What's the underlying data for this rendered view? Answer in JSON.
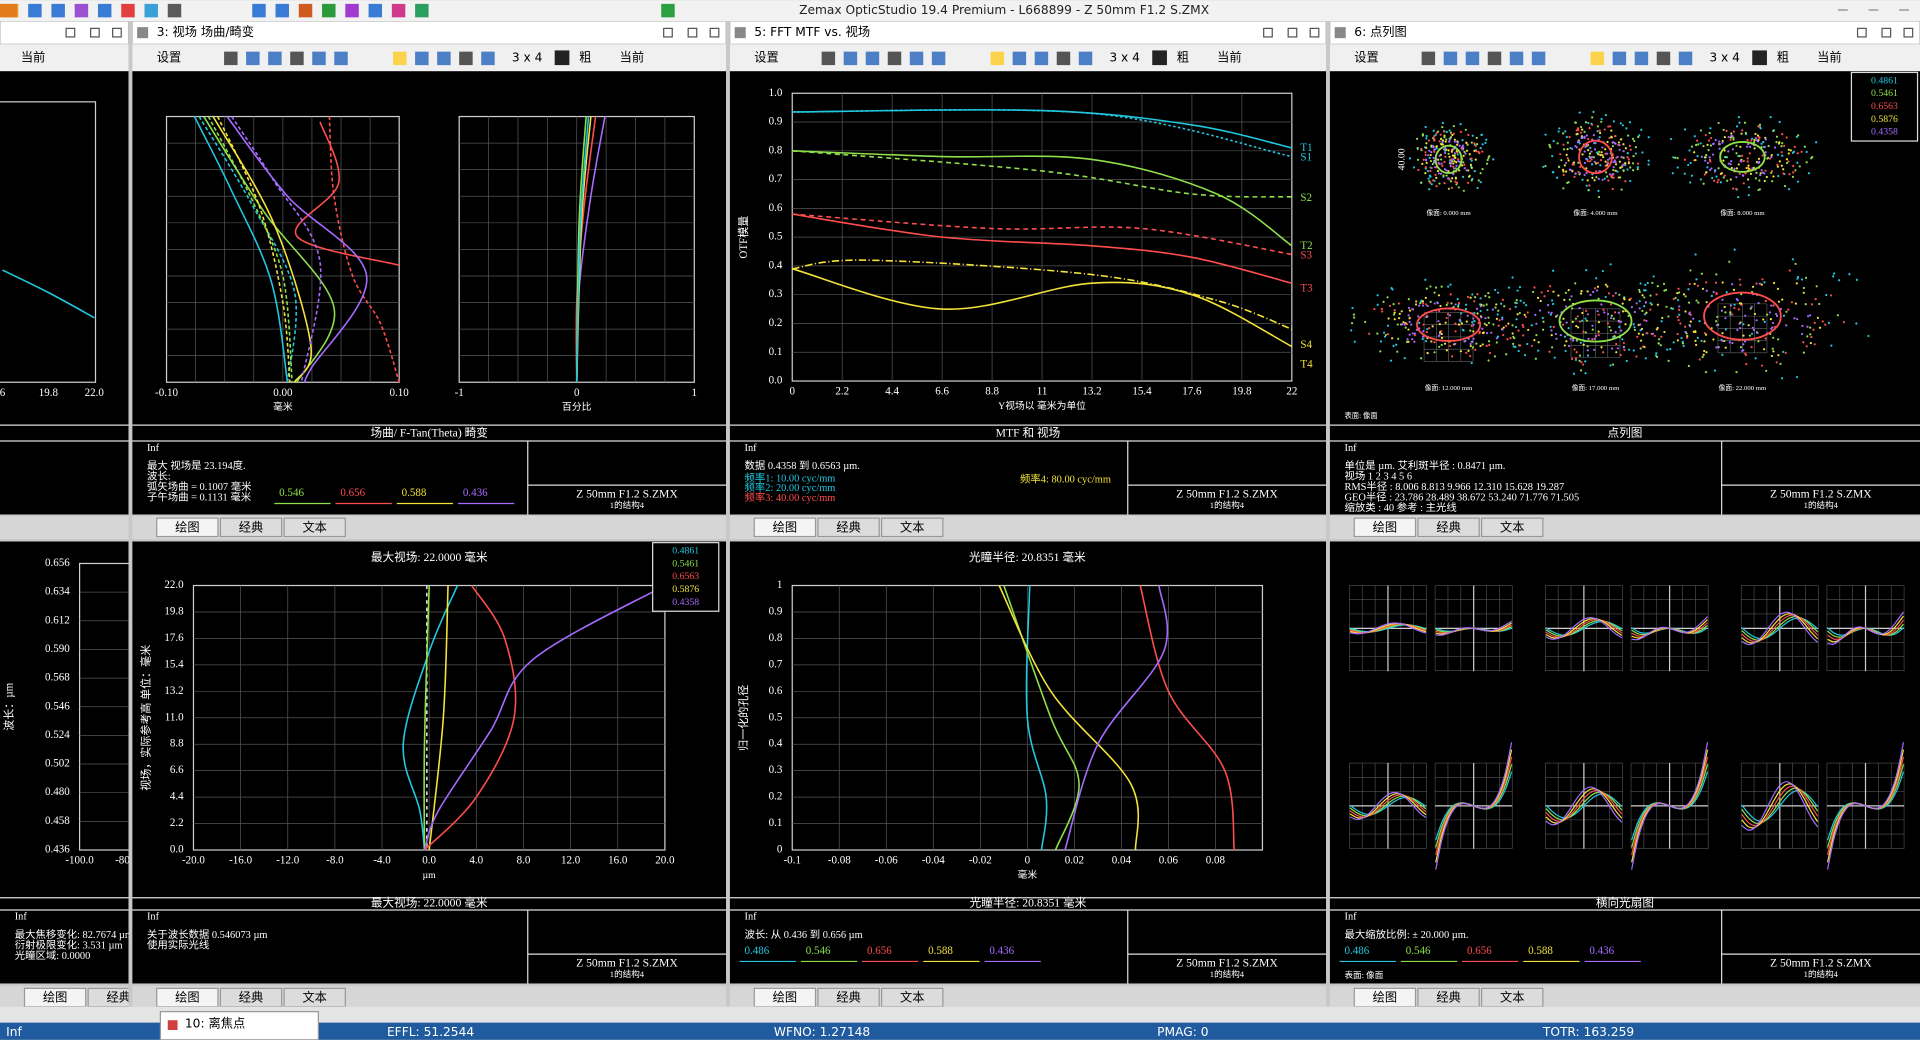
{
  "window_title": "Zemax OpticStudio 19.4    Premium - L668899 - Z 50mm F1.2 S.ZMX",
  "status_bar": [
    "Inf",
    "EFFL: 51.2544",
    "WFNO: 1.27148",
    "PMAG: 0",
    "TOTR: 163.259"
  ],
  "floating_tab": "10: 离焦点",
  "panels": [
    {
      "toolbar": [
        "当前"
      ],
      "axes": [
        {
          "xticks": [
            "6",
            "19.8",
            "22.0"
          ]
        }
      ]
    },
    {
      "header": "3: 视场 场曲/畸变",
      "toolbar": [
        "设置",
        "3 x 4",
        "粗",
        "当前"
      ],
      "axes": [
        {
          "xticks": [
            "-0.10",
            "0.00",
            "0.10"
          ],
          "xlabel": "毫米"
        },
        {
          "xticks": [
            "-1",
            "0",
            "1"
          ],
          "xlabel": "百分比"
        }
      ],
      "caption": "场曲/ F-Tan(Theta) 畸变",
      "info": [
        "Inf",
        "最大 视场是 23.194度.",
        "波长:",
        "弧矢场曲 = 0.1007 毫米",
        "子午场曲 = 0.1131 毫米"
      ],
      "wavelengths": [
        {
          "label": "0.546",
          "color": "#8ee04a"
        },
        {
          "label": "0.656",
          "color": "#ff4d4d"
        },
        {
          "label": "0.588",
          "color": "#f2e23a"
        },
        {
          "label": "0.436",
          "color": "#a66bff"
        }
      ],
      "file": "Z 50mm F1.2 S.ZMX",
      "config": "1的结构4",
      "tabs": [
        "绘图",
        "经典",
        "文本"
      ]
    },
    {
      "header": "5: FFT MTF vs. 视场",
      "toolbar": [
        "设置",
        "3 x 4",
        "粗",
        "当前"
      ],
      "axes": [
        {
          "xticks": [
            "0",
            "2.2",
            "4.4",
            "6.6",
            "8.8",
            "11",
            "13.2",
            "15.4",
            "17.6",
            "19.8",
            "22"
          ],
          "yticks": [
            "0.0",
            "0.1",
            "0.2",
            "0.3",
            "0.4",
            "0.5",
            "0.6",
            "0.7",
            "0.8",
            "0.9",
            "1.0"
          ],
          "xlabel": "Y视场以 毫米为单位",
          "ylabel": "OTF模量"
        }
      ],
      "curve_labels": [
        {
          "label": "T1",
          "color": "#20c8e0"
        },
        {
          "label": "S1",
          "color": "#20c8e0"
        },
        {
          "label": "S2",
          "color": "#8ee04a"
        },
        {
          "label": "T2",
          "color": "#8ee04a"
        },
        {
          "label": "S3",
          "color": "#ff4d4d"
        },
        {
          "label": "T3",
          "color": "#ff4d4d"
        },
        {
          "label": "S4",
          "color": "#f2e23a"
        },
        {
          "label": "T4",
          "color": "#f2e23a"
        }
      ],
      "caption": "MTF 和 视场",
      "info": [
        "Inf",
        "数据 0.4358 到 0.6563 µm."
      ],
      "frequencies": [
        {
          "label": "频率1:  10.00 cyc/mm",
          "color": "#20c8e0"
        },
        {
          "label": "频率2:  20.00 cyc/mm",
          "color": "#20c8e0"
        },
        {
          "label": "频率3:  40.00 cyc/mm",
          "color": "#ff4d4d"
        },
        {
          "label": "频率4:   80.00 cyc/mm",
          "color": "#f2e23a"
        }
      ],
      "file": "Z 50mm F1.2 S.ZMX",
      "config": "1的结构4",
      "tabs": [
        "绘图",
        "经典",
        "文本"
      ]
    },
    {
      "header": "6: 点列图",
      "toolbar": [
        "设置",
        "3 x 4",
        "粗",
        "当前"
      ],
      "legend": [
        {
          "label": "0.4861",
          "color": "#20c8e0"
        },
        {
          "label": "0.5461",
          "color": "#8ee04a"
        },
        {
          "label": "0.6563",
          "color": "#ff4d4d"
        },
        {
          "label": "0.5876",
          "color": "#f2e23a"
        },
        {
          "label": "0.4358",
          "color": "#a66bff"
        }
      ],
      "spot_labels": [
        "像面: 0.000 mm",
        "像面: 4.000 mm",
        "像面: 8.000 mm",
        "像面: 12.000 mm",
        "像面: 17.000 mm",
        "像面: 22.000 mm"
      ],
      "scale": "40.00",
      "surface": "表面: 像面",
      "caption": "点列图",
      "info": [
        "Inf",
        "单位是 µm.                艾利斑半径 : 0.8471 µm.",
        "视场      1       2       3       4       5       6",
        "RMS半径 :  8.006   8.813   9.966   12.310  15.628  19.287",
        "GEO半径 :  23.786  28.489  38.672  53.240  71.776  71.505",
        "缩放类  :   40    参考 :  主光线"
      ],
      "file": "Z 50mm F1.2 S.ZMX",
      "config": "1的结构4",
      "tabs": [
        "绘图",
        "经典",
        "文本"
      ]
    },
    {
      "axes": [
        {
          "xticks": [
            "-100.0",
            "-80"
          ],
          "yticks": [
            "0.436",
            "0.458",
            "0.480",
            "0.502",
            "0.524",
            "0.546",
            "0.568",
            "0.590",
            "0.612",
            "0.634",
            "0.656"
          ],
          "ylabel": "波长：µm"
        }
      ],
      "info": [
        "Inf",
        "最大焦移变化: 82.7674 µm",
        "衍射极限变化: 3.531 µm",
        "光瞳区域: 0.0000"
      ],
      "tabs": [
        "绘图",
        "经典"
      ]
    },
    {
      "title": "最大视场: 22.0000 毫米",
      "axes": [
        {
          "xticks": [
            "-20.0",
            "-16.0",
            "-12.0",
            "-8.0",
            "-4.0",
            "0.0",
            "4.0",
            "8.0",
            "12.0",
            "16.0",
            "20.0"
          ],
          "yticks": [
            "0.0",
            "2.2",
            "4.4",
            "6.6",
            "8.8",
            "11.0",
            "13.2",
            "15.4",
            "17.6",
            "19.8",
            "22.0"
          ],
          "xlabel": "µm",
          "ylabel": "视场，实际参考高 单位：毫米"
        }
      ],
      "legend": [
        {
          "label": "0.4861",
          "color": "#20c8e0"
        },
        {
          "label": "0.5461",
          "color": "#8ee04a"
        },
        {
          "label": "0.6563",
          "color": "#ff4d4d"
        },
        {
          "label": "0.5876",
          "color": "#f2e23a"
        },
        {
          "label": "0.4358",
          "color": "#a66bff"
        }
      ],
      "caption": "最大视场: 22.0000 毫米",
      "info": [
        "Inf",
        "关于波长数据 0.546073 µm",
        "使用实际光线"
      ],
      "file": "Z 50mm F1.2 S.ZMX",
      "config": "1的结构4",
      "tabs": [
        "绘图",
        "经典",
        "文本"
      ]
    },
    {
      "title": "光瞳半径: 20.8351 毫米",
      "axes": [
        {
          "xticks": [
            "-0.1",
            "-0.08",
            "-0.06",
            "-0.04",
            "-0.02",
            "0",
            "0.02",
            "0.04",
            "0.06",
            "0.08"
          ],
          "yticks": [
            "0",
            "0.1",
            "0.2",
            "0.3",
            "0.4",
            "0.5",
            "0.6",
            "0.7",
            "0.8",
            "0.9",
            "1"
          ],
          "xlabel": "毫米",
          "ylabel": "归一化的孔径"
        }
      ],
      "caption": "光瞳半径: 20.8351 毫米",
      "info": [
        "Inf",
        "波长: 从 0.436 到 0.656 µm"
      ],
      "wavelengths": [
        {
          "label": "0.486",
          "color": "#20c8e0"
        },
        {
          "label": "0.546",
          "color": "#8ee04a"
        },
        {
          "label": "0.656",
          "color": "#ff4d4d"
        },
        {
          "label": "0.588",
          "color": "#f2e23a"
        },
        {
          "label": "0.436",
          "color": "#a66bff"
        }
      ],
      "file": "Z 50mm F1.2 S.ZMX",
      "config": "1的结构4",
      "tabs": [
        "绘图",
        "经典",
        "文本"
      ]
    },
    {
      "caption": "横向光扇图",
      "info": [
        "Inf",
        "最大缩放比例: ± 20.000 µm."
      ],
      "wavelengths": [
        {
          "label": "0.486",
          "color": "#20c8e0"
        },
        {
          "label": "0.546",
          "color": "#8ee04a"
        },
        {
          "label": "0.656",
          "color": "#ff4d4d"
        },
        {
          "label": "0.588",
          "color": "#f2e23a"
        },
        {
          "label": "0.436",
          "color": "#a66bff"
        }
      ],
      "surface": "表面: 像面",
      "file": "Z 50mm F1.2 S.ZMX",
      "config": "1的结构4",
      "tabs": [
        "绘图",
        "经典",
        "文本"
      ]
    }
  ]
}
